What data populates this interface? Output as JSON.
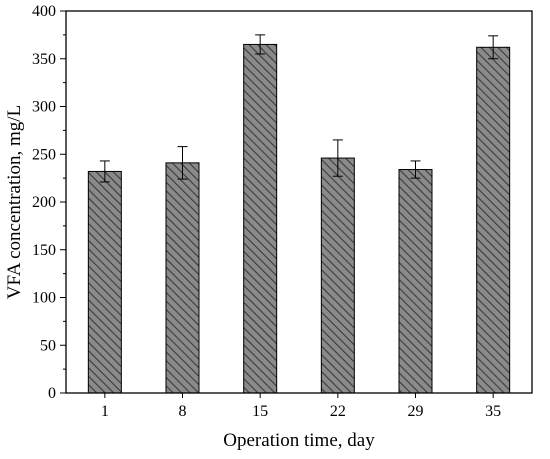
{
  "chart_data": {
    "type": "bar",
    "title": "",
    "xlabel": "Operation time, day",
    "ylabel": "VFA concentration, mg/L",
    "categories": [
      "1",
      "8",
      "15",
      "22",
      "29",
      "35"
    ],
    "values": [
      232,
      241,
      365,
      246,
      234,
      362
    ],
    "errors": [
      11,
      17,
      10,
      19,
      9,
      12
    ],
    "ylim": [
      0,
      400
    ],
    "yticks": [
      0,
      50,
      100,
      150,
      200,
      250,
      300,
      350,
      400
    ],
    "grid": false,
    "legend": "none",
    "bar_fill": "#888888",
    "bar_pattern": "diagonal-hatch",
    "colors": {
      "bar": "#888888",
      "hatch": "#333333",
      "axis": "#000000"
    }
  }
}
